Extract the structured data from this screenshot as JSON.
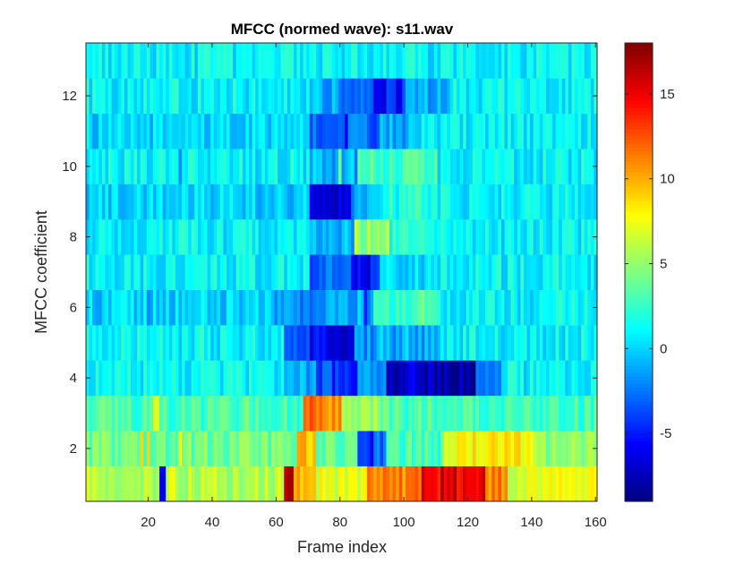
{
  "chart_data": {
    "type": "heatmap",
    "title": "MFCC (normed wave): s11.wav",
    "xlabel": "Frame index",
    "ylabel": "MFCC coefficient",
    "xlim": [
      0.5,
      160.5
    ],
    "ylim": [
      0.5,
      13.5
    ],
    "x_ticks": [
      20,
      40,
      60,
      80,
      100,
      120,
      140,
      160
    ],
    "y_ticks": [
      2,
      4,
      6,
      8,
      10,
      12
    ],
    "colormap": "jet",
    "colorbar": {
      "range": [
        -9,
        18
      ],
      "ticks": [
        -5,
        0,
        5,
        10,
        15
      ]
    },
    "n_frames": 160,
    "n_coefficients": 13,
    "rows": [
      {
        "coefficient": 1,
        "segments": [
          [
            1,
            62,
            6
          ],
          [
            63,
            65,
            15
          ],
          [
            66,
            72,
            10
          ],
          [
            73,
            88,
            7
          ],
          [
            89,
            105,
            11
          ],
          [
            106,
            125,
            15
          ],
          [
            126,
            132,
            11
          ],
          [
            133,
            160,
            7
          ]
        ],
        "spikes": [
          [
            24,
            -6
          ],
          [
            25,
            -6
          ],
          [
            64,
            17
          ],
          [
            65,
            17
          ],
          [
            112,
            17
          ],
          [
            116,
            17
          ]
        ]
      },
      {
        "coefficient": 2,
        "segments": [
          [
            1,
            66,
            4
          ],
          [
            67,
            72,
            10
          ],
          [
            73,
            85,
            4
          ],
          [
            86,
            94,
            -3
          ],
          [
            95,
            112,
            3
          ],
          [
            113,
            128,
            8
          ],
          [
            129,
            140,
            8
          ],
          [
            141,
            160,
            5
          ]
        ],
        "spikes": [
          [
            18,
            9
          ],
          [
            20,
            9
          ],
          [
            30,
            8
          ],
          [
            90,
            -6
          ]
        ]
      },
      {
        "coefficient": 3,
        "segments": [
          [
            1,
            68,
            3
          ],
          [
            69,
            80,
            11
          ],
          [
            81,
            92,
            5
          ],
          [
            93,
            118,
            3
          ],
          [
            119,
            160,
            3
          ]
        ],
        "spikes": [
          [
            22,
            7
          ],
          [
            23,
            7
          ],
          [
            71,
            13
          ],
          [
            74,
            12
          ]
        ]
      },
      {
        "coefficient": 4,
        "segments": [
          [
            1,
            62,
            1
          ],
          [
            63,
            72,
            -1
          ],
          [
            73,
            85,
            -4
          ],
          [
            86,
            94,
            -1
          ],
          [
            95,
            105,
            -7
          ],
          [
            106,
            122,
            -8
          ],
          [
            123,
            130,
            -3
          ],
          [
            131,
            160,
            1
          ]
        ],
        "spikes": [
          [
            112,
            -9
          ]
        ]
      },
      {
        "coefficient": 5,
        "segments": [
          [
            1,
            62,
            1
          ],
          [
            63,
            70,
            -3
          ],
          [
            71,
            84,
            -6
          ],
          [
            85,
            92,
            -2
          ],
          [
            93,
            110,
            -1
          ],
          [
            111,
            160,
            1
          ]
        ],
        "spikes": [
          [
            78,
            -7
          ],
          [
            80,
            -7
          ]
        ]
      },
      {
        "coefficient": 6,
        "segments": [
          [
            1,
            58,
            0
          ],
          [
            59,
            72,
            -2
          ],
          [
            73,
            90,
            -1
          ],
          [
            91,
            110,
            3
          ],
          [
            111,
            160,
            1
          ]
        ],
        "spikes": [
          [
            20,
            -2
          ],
          [
            88,
            -5
          ]
        ]
      },
      {
        "coefficient": 7,
        "segments": [
          [
            1,
            70,
            1
          ],
          [
            71,
            83,
            -3
          ],
          [
            84,
            92,
            -5
          ],
          [
            93,
            110,
            0
          ],
          [
            111,
            160,
            1
          ]
        ],
        "spikes": [
          [
            89,
            -7
          ]
        ]
      },
      {
        "coefficient": 8,
        "segments": [
          [
            1,
            70,
            1
          ],
          [
            71,
            84,
            -1
          ],
          [
            85,
            95,
            5
          ],
          [
            96,
            120,
            2
          ],
          [
            121,
            160,
            1
          ]
        ],
        "spikes": [
          [
            80,
            -2
          ]
        ]
      },
      {
        "coefficient": 9,
        "segments": [
          [
            1,
            70,
            0
          ],
          [
            71,
            83,
            -6
          ],
          [
            84,
            93,
            -1
          ],
          [
            94,
            108,
            2
          ],
          [
            109,
            160,
            1
          ]
        ],
        "spikes": [
          [
            76,
            -7
          ]
        ]
      },
      {
        "coefficient": 10,
        "segments": [
          [
            1,
            70,
            1
          ],
          [
            71,
            85,
            -1
          ],
          [
            86,
            110,
            3
          ],
          [
            111,
            160,
            1
          ]
        ],
        "spikes": [
          [
            30,
            -2
          ],
          [
            80,
            4
          ]
        ]
      },
      {
        "coefficient": 11,
        "segments": [
          [
            1,
            70,
            0
          ],
          [
            71,
            92,
            -3
          ],
          [
            93,
            105,
            -1
          ],
          [
            106,
            120,
            1
          ],
          [
            121,
            160,
            1
          ]
        ],
        "spikes": [
          [
            82,
            -6
          ]
        ]
      },
      {
        "coefficient": 12,
        "segments": [
          [
            1,
            70,
            1
          ],
          [
            71,
            80,
            -1
          ],
          [
            81,
            90,
            -2
          ],
          [
            91,
            100,
            -5
          ],
          [
            101,
            115,
            -1
          ],
          [
            116,
            160,
            1
          ]
        ],
        "spikes": [
          [
            92,
            -6
          ]
        ]
      },
      {
        "coefficient": 13,
        "segments": [
          [
            1,
            160,
            1
          ]
        ],
        "spikes": []
      }
    ]
  }
}
